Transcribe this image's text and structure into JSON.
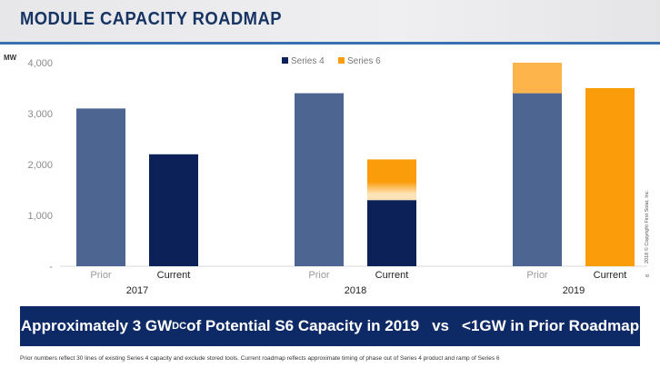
{
  "header": {
    "title": "MODULE CAPACITY ROADMAP"
  },
  "chart_data": {
    "type": "bar",
    "stacked": true,
    "ylabel": "MW",
    "ylim": [
      0,
      4000
    ],
    "yticks": [
      0,
      1000,
      2000,
      3000,
      4000
    ],
    "ytick_labels": [
      "-",
      "1,000",
      "2,000",
      "3,000",
      "4,000"
    ],
    "legend_position": "top-center",
    "groups": [
      "2017",
      "2018",
      "2019"
    ],
    "categories": [
      "Prior",
      "Current",
      "Prior",
      "Current",
      "Prior",
      "Current"
    ],
    "category_groups": [
      "2017",
      "2017",
      "2018",
      "2018",
      "2019",
      "2019"
    ],
    "series": [
      {
        "name": "Series 4",
        "values": [
          3100,
          2200,
          3400,
          1300,
          3400,
          0
        ]
      },
      {
        "name": "Series 6",
        "values": [
          0,
          0,
          0,
          800,
          600,
          3500
        ]
      }
    ],
    "colors": {
      "series4_prior": "#4d6591",
      "series4_current": "#0b2158",
      "series6_prior": "#fdb44b",
      "series6_current": "#fb9d0b",
      "axis": "#d9d9d9",
      "tick_text": "#8a8a8a",
      "category_prior_text": "#9a9a9a",
      "category_current_text": "#222222"
    }
  },
  "banner": {
    "prefix": "Approximately 3 GW",
    "subscript": "DC",
    "suffix": " of Potential S6 Capacity in 2019",
    "vs": "vs",
    "comparison": "<1GW in Prior Roadmap"
  },
  "footnote": "Prior numbers reflect 30 lines of existing Series 4 capacity and exclude stored tools. Current roadmap reflects approximate timing of phase out of Series 4 product and ramp of Series 6",
  "copyright": "2018 © Copyright First Solar, Inc.",
  "page_number": "8"
}
